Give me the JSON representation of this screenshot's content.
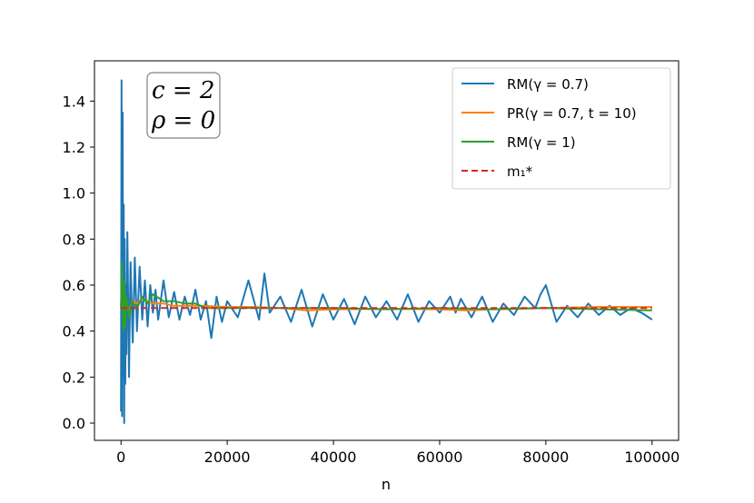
{
  "chart_data": {
    "type": "line",
    "title": "",
    "xlabel": "n",
    "ylabel": "",
    "xlim": [
      -5000,
      105000
    ],
    "ylim": [
      -0.075,
      1.575
    ],
    "xticks": [
      0,
      20000,
      40000,
      60000,
      80000,
      100000
    ],
    "xtick_labels": [
      "0",
      "20000",
      "40000",
      "60000",
      "80000",
      "100000"
    ],
    "yticks": [
      0.0,
      0.2,
      0.4,
      0.6,
      0.8,
      1.0,
      1.2,
      1.4
    ],
    "ytick_labels": [
      "0.0",
      "0.2",
      "0.4",
      "0.6",
      "0.8",
      "1.0",
      "1.2",
      "1.4"
    ],
    "grid": false,
    "legend_position": "top-right",
    "annotation": {
      "line1": "c = 2",
      "line2": "ρ = 0",
      "position": "top-left"
    },
    "series": [
      {
        "name": "RM(γ = 0.7)",
        "color": "#1f77b4",
        "style": "solid",
        "x": [
          0,
          100,
          200,
          300,
          400,
          500,
          600,
          700,
          800,
          900,
          1000,
          1200,
          1500,
          1800,
          2200,
          2600,
          3000,
          3500,
          4000,
          4500,
          5000,
          5500,
          6000,
          6500,
          7000,
          8000,
          9000,
          10000,
          11000,
          12000,
          13000,
          14000,
          15000,
          16000,
          17000,
          18000,
          19000,
          20000,
          22000,
          24000,
          26000,
          27000,
          28000,
          30000,
          32000,
          34000,
          36000,
          38000,
          40000,
          42000,
          44000,
          46000,
          48000,
          50000,
          52000,
          54000,
          56000,
          58000,
          60000,
          62000,
          63000,
          64000,
          66000,
          68000,
          70000,
          72000,
          74000,
          76000,
          78000,
          79000,
          80000,
          82000,
          84000,
          86000,
          88000,
          90000,
          92000,
          94000,
          96000,
          98000,
          100000
        ],
        "y": [
          0.05,
          1.49,
          0.03,
          1.35,
          0.2,
          0.95,
          0.0,
          0.8,
          0.17,
          0.6,
          0.3,
          0.83,
          0.2,
          0.7,
          0.35,
          0.72,
          0.4,
          0.68,
          0.45,
          0.62,
          0.42,
          0.6,
          0.48,
          0.58,
          0.45,
          0.62,
          0.46,
          0.57,
          0.45,
          0.55,
          0.47,
          0.58,
          0.45,
          0.53,
          0.37,
          0.55,
          0.44,
          0.53,
          0.46,
          0.62,
          0.45,
          0.65,
          0.48,
          0.55,
          0.44,
          0.58,
          0.42,
          0.56,
          0.45,
          0.54,
          0.43,
          0.55,
          0.46,
          0.53,
          0.45,
          0.56,
          0.44,
          0.53,
          0.48,
          0.55,
          0.48,
          0.54,
          0.46,
          0.55,
          0.44,
          0.52,
          0.47,
          0.55,
          0.5,
          0.56,
          0.6,
          0.44,
          0.51,
          0.46,
          0.52,
          0.47,
          0.51,
          0.47,
          0.5,
          0.48,
          0.45
        ]
      },
      {
        "name": "PR(γ = 0.7, t = 10)",
        "color": "#ff7f0e",
        "style": "solid",
        "x": [
          0,
          200,
          400,
          600,
          800,
          1000,
          1500,
          2000,
          3000,
          4000,
          5000,
          6000,
          8000,
          10000,
          12000,
          15000,
          20000,
          25000,
          30000,
          35000,
          40000,
          50000,
          60000,
          65000,
          70000,
          80000,
          90000,
          100000
        ],
        "y": [
          0.5,
          0.65,
          0.45,
          0.58,
          0.47,
          0.52,
          0.48,
          0.53,
          0.52,
          0.54,
          0.53,
          0.52,
          0.52,
          0.51,
          0.51,
          0.51,
          0.505,
          0.505,
          0.5,
          0.49,
          0.495,
          0.497,
          0.495,
          0.49,
          0.495,
          0.5,
          0.505,
          0.505
        ]
      },
      {
        "name": "RM(γ = 1)",
        "color": "#2ca02c",
        "style": "solid",
        "x": [
          0,
          200,
          400,
          600,
          800,
          1000,
          1500,
          2000,
          3000,
          4000,
          5000,
          6000,
          8000,
          10000,
          12000,
          14000,
          16000,
          20000,
          30000,
          40000,
          50000,
          60000,
          70000,
          80000,
          90000,
          100000
        ],
        "y": [
          0.5,
          0.7,
          0.4,
          0.62,
          0.42,
          0.55,
          0.46,
          0.53,
          0.5,
          0.55,
          0.52,
          0.56,
          0.53,
          0.53,
          0.52,
          0.52,
          0.5,
          0.5,
          0.5,
          0.5,
          0.495,
          0.5,
          0.495,
          0.5,
          0.495,
          0.49
        ]
      },
      {
        "name": "m₁*",
        "color": "#d62728",
        "style": "dashed",
        "x": [
          0,
          100000
        ],
        "y": [
          0.5,
          0.5
        ]
      }
    ]
  }
}
